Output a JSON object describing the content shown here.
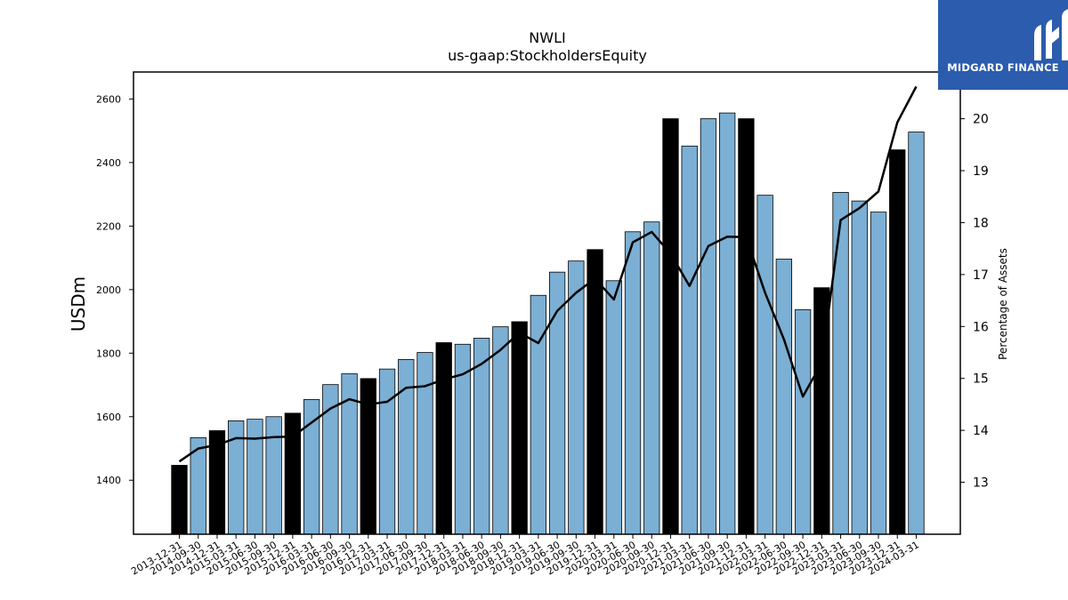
{
  "chart_data": {
    "type": "bar",
    "title": "NWLI",
    "subtitle": "us-gaap:StockholdersEquity",
    "ylabel": "USDm",
    "y2label": "Percentage of Assets",
    "ylim": [
      1230,
      2685
    ],
    "y2lim": [
      12.0,
      20.9
    ],
    "yticks": [
      1400,
      1600,
      1800,
      2000,
      2200,
      2400,
      2600
    ],
    "y2ticks": [
      13,
      14,
      15,
      16,
      17,
      18,
      19,
      20
    ],
    "colors": {
      "bar": "#7bafd4",
      "bar_highlight": "#000000",
      "line": "#000000"
    },
    "categories": [
      "2013-12-31",
      "2014-09-30",
      "2014-12-31",
      "2015-03-31",
      "2015-06-30",
      "2015-09-30",
      "2015-12-31",
      "2016-03-31",
      "2016-06-30",
      "2016-09-30",
      "2016-12-31",
      "2017-03-31",
      "2017-06-30",
      "2017-09-30",
      "2017-12-31",
      "2018-03-31",
      "2018-06-30",
      "2018-09-30",
      "2018-12-31",
      "2019-03-31",
      "2019-06-30",
      "2019-09-30",
      "2019-12-31",
      "2020-03-31",
      "2020-06-30",
      "2020-09-30",
      "2020-12-31",
      "2021-03-31",
      "2021-06-30",
      "2021-09-30",
      "2021-12-31",
      "2022-03-31",
      "2022-06-30",
      "2022-09-30",
      "2022-12-31",
      "2023-03-31",
      "2023-06-30",
      "2023-09-30",
      "2023-12-31",
      "2024-03-31"
    ],
    "series": [
      {
        "values": [
          1447,
          1534,
          1556,
          1587,
          1592,
          1600,
          1611,
          1654,
          1701,
          1735,
          1720,
          1750,
          1780,
          1802,
          1833,
          1828,
          1847,
          1883,
          1899,
          1982,
          2055,
          2090,
          2126,
          2028,
          2182,
          2213,
          2538,
          2452,
          2538,
          2556,
          2538,
          2297,
          2096,
          1937,
          2006,
          2306,
          2279,
          2244,
          2440,
          2496
        ],
        "highlight": [
          true,
          false,
          true,
          false,
          false,
          false,
          true,
          false,
          false,
          false,
          true,
          false,
          false,
          false,
          true,
          false,
          false,
          false,
          true,
          false,
          false,
          false,
          true,
          false,
          false,
          false,
          true,
          false,
          false,
          false,
          true,
          false,
          false,
          false,
          true,
          false,
          false,
          false,
          true,
          false
        ]
      },
      {
        "axis": "right",
        "type": "line",
        "values": [
          13.4,
          13.65,
          13.72,
          13.85,
          13.84,
          13.87,
          13.88,
          14.15,
          14.42,
          14.6,
          14.5,
          14.55,
          14.82,
          14.85,
          14.98,
          15.08,
          15.28,
          15.55,
          15.88,
          15.68,
          16.3,
          16.65,
          16.92,
          16.52,
          17.62,
          17.82,
          17.4,
          16.78,
          17.55,
          17.73,
          17.72,
          16.65,
          15.75,
          14.65,
          15.3,
          18.05,
          18.28,
          18.6,
          19.93,
          20.62
        ]
      }
    ]
  },
  "logo": {
    "text": "MIDGARD FINANCE"
  }
}
